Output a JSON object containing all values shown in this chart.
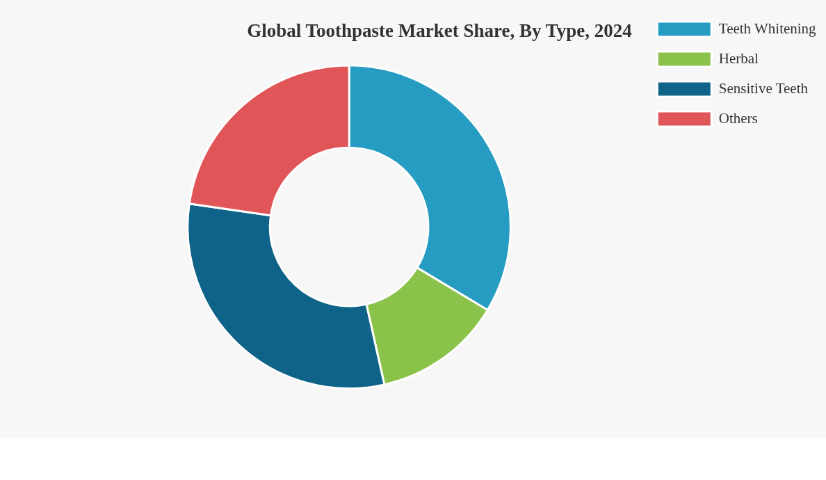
{
  "chart_data": {
    "type": "donut",
    "title": "Global Toothpaste Market Share, By Type, 2024",
    "categories": [
      "Teeth Whitening",
      "Herbal",
      "Sensitive Teeth",
      "Others"
    ],
    "values": [
      33.6,
      12.9,
      30.8,
      22.7
    ],
    "colors": [
      "#279cc3",
      "#8bc34a",
      "#0f6388",
      "#e05558"
    ],
    "legend": "top right"
  }
}
